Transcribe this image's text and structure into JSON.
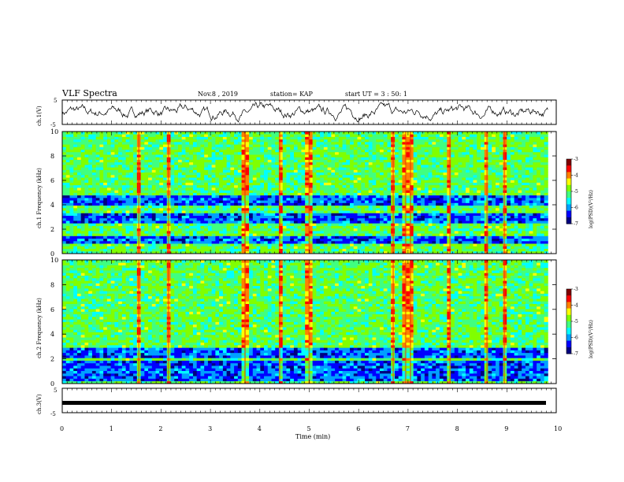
{
  "header": {
    "title": "VLF Spectra",
    "date": "Nov.8 , 2019",
    "station": "station= KAP",
    "start": "start UT = 3 : 50: 1"
  },
  "colors": {
    "spectrogram_scale": [
      "#000080",
      "#0000ff",
      "#00a0ff",
      "#00ffff",
      "#40ff80",
      "#80ff00",
      "#ffff00",
      "#ff8000",
      "#ff0000",
      "#800000"
    ]
  },
  "chart_data": [
    {
      "name": "ch1-waveform",
      "type": "line",
      "ylabel": "ch.1(V)",
      "yticks": [
        "5",
        "-5"
      ],
      "ylim": [
        -5,
        5
      ],
      "xlim": [
        0,
        9.83
      ],
      "trace": "noisy-waveform"
    },
    {
      "name": "ch1-spectrogram",
      "type": "heatmap",
      "ylabel": "ch.1\nFrequency (kHz)",
      "yticks": [
        "0",
        "2",
        "4",
        "6",
        "8",
        "10"
      ],
      "ylim": [
        0,
        10
      ],
      "xlim": [
        0,
        9.83
      ],
      "colorbar": {
        "label": "log(PSD)(V²/Hz)",
        "ticks": [
          "-3",
          "-4",
          "-5",
          "-6",
          "-7"
        ],
        "range": [
          -7,
          -3
        ]
      },
      "low_power_bands_khz": [
        [
          0.8,
          1.4
        ],
        [
          2.6,
          3.4
        ],
        [
          3.9,
          4.7
        ]
      ],
      "hot_times_min": [
        1.55,
        2.15,
        3.7,
        4.4,
        5.0,
        6.7,
        6.95,
        7.05,
        7.85,
        8.6,
        8.95
      ]
    },
    {
      "name": "ch2-spectrogram",
      "type": "heatmap",
      "ylabel": "ch.2\nFrequency (kHz)",
      "yticks": [
        "0",
        "2",
        "4",
        "6",
        "8",
        "10"
      ],
      "ylim": [
        0,
        10
      ],
      "xlim": [
        0,
        9.83
      ],
      "colorbar": {
        "label": "log(PSD)(V²/Hz)",
        "ticks": [
          "-3",
          "-4",
          "-5",
          "-6",
          "-7"
        ],
        "range": [
          -7,
          -3
        ]
      },
      "low_power_bands_khz": [
        [
          0.3,
          1.8
        ],
        [
          2.0,
          3.0
        ]
      ],
      "hot_times_min": [
        1.55,
        2.15,
        3.7,
        4.4,
        5.0,
        6.7,
        6.95,
        7.05,
        7.85,
        8.6,
        8.95
      ]
    },
    {
      "name": "ch3-waveform",
      "type": "line",
      "ylabel": "ch.3(V)",
      "yticks": [
        "5",
        "-5"
      ],
      "ylim": [
        -5,
        5
      ],
      "xlim": [
        0,
        9.83
      ],
      "constant_value": 0
    }
  ],
  "x_axis": {
    "label": "Time (min)",
    "ticks": [
      "0",
      "1",
      "2",
      "3",
      "4",
      "5",
      "6",
      "7",
      "8",
      "9",
      "10"
    ],
    "range": [
      0,
      10
    ]
  }
}
